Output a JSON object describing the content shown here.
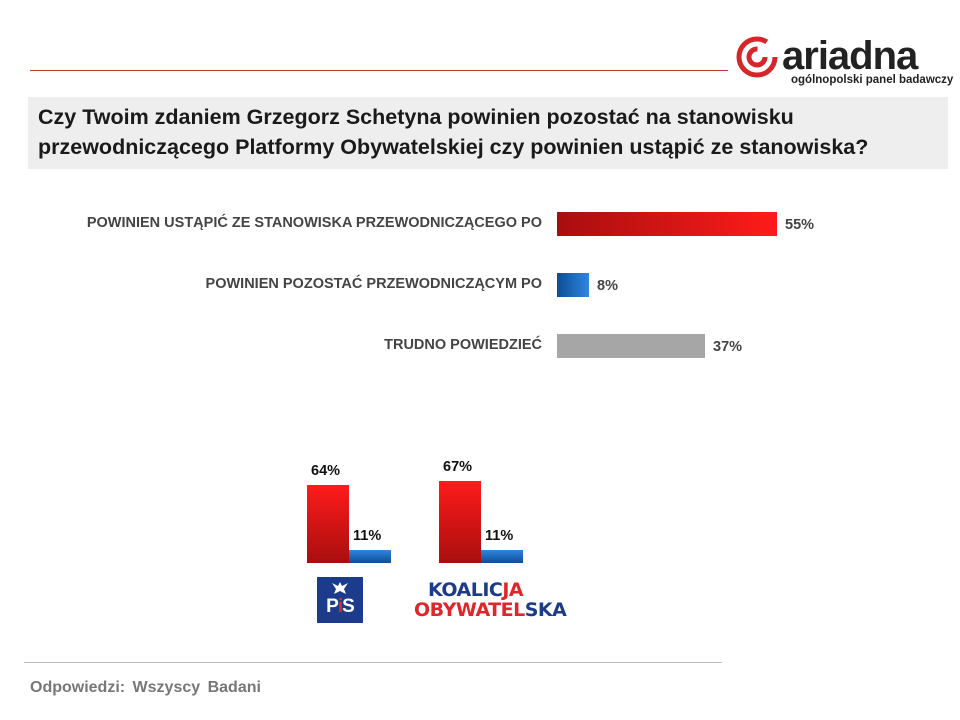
{
  "logo": {
    "wordmark": "ariadna",
    "tagline": "ogólnopolski panel badawczy"
  },
  "question": "Czy Twoim zdaniem Grzegorz Schetyna powinien pozostać na stanowisku przewodniczącego Platformy Obywatelskiej czy powinien ustąpić ze stanowiska?",
  "chart_data": [
    {
      "type": "bar",
      "orientation": "horizontal",
      "categories": [
        "POWINIEN USTĄPIĆ ZE STANOWISKA PRZEWODNICZĄCEGO PO",
        "POWINIEN POZOSTAĆ PRZEWODNICZĄCYM PO",
        "TRUDNO POWIEDZIEĆ"
      ],
      "values": [
        55,
        8,
        37
      ],
      "value_labels": [
        "55%",
        "8%",
        "37%"
      ],
      "colors": [
        "#e8141b",
        "#1f6fc0",
        "#a6a6a6"
      ],
      "xlim": [
        0,
        100
      ]
    },
    {
      "type": "bar",
      "orientation": "vertical",
      "categories": [
        "PiS",
        "KOALICJA OBYWATELSKA"
      ],
      "series": [
        {
          "values": [
            64,
            67
          ],
          "value_labels": [
            "64%",
            "67%"
          ],
          "color": "#e8141b"
        },
        {
          "values": [
            11,
            11
          ],
          "value_labels": [
            "11%",
            "11%"
          ],
          "color": "#1f6fc0"
        }
      ],
      "ylim": [
        0,
        100
      ]
    }
  ],
  "parties": {
    "pis": {
      "p": "P",
      "i": "i",
      "s": "S"
    },
    "ko": {
      "line1_a": "KOALIC",
      "line1_b": "JA",
      "line2_a": "OBYWATEL",
      "line2_b": "SKA"
    }
  },
  "footer": "Odpowiedzi: Wszyscy Badani"
}
